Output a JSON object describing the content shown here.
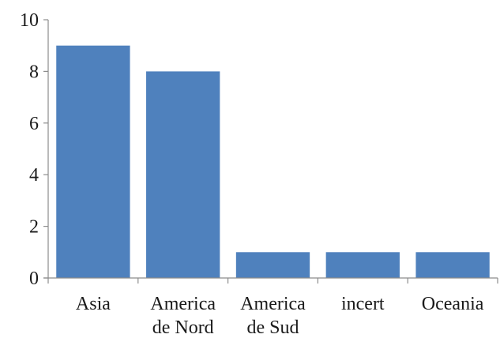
{
  "chart_data": {
    "type": "bar",
    "categories": [
      [
        "Asia"
      ],
      [
        "America",
        "de Nord"
      ],
      [
        "America",
        "de Sud"
      ],
      [
        "incert"
      ],
      [
        "Oceania"
      ]
    ],
    "values": [
      9,
      8,
      1,
      1,
      1
    ],
    "ylim": [
      0,
      10
    ],
    "yticks": [
      "0",
      "2",
      "4",
      "6",
      "8",
      "10"
    ],
    "bar_color": "#4f81bd",
    "axis_color": "#8c8c8c",
    "grid": false,
    "legend": "none"
  }
}
